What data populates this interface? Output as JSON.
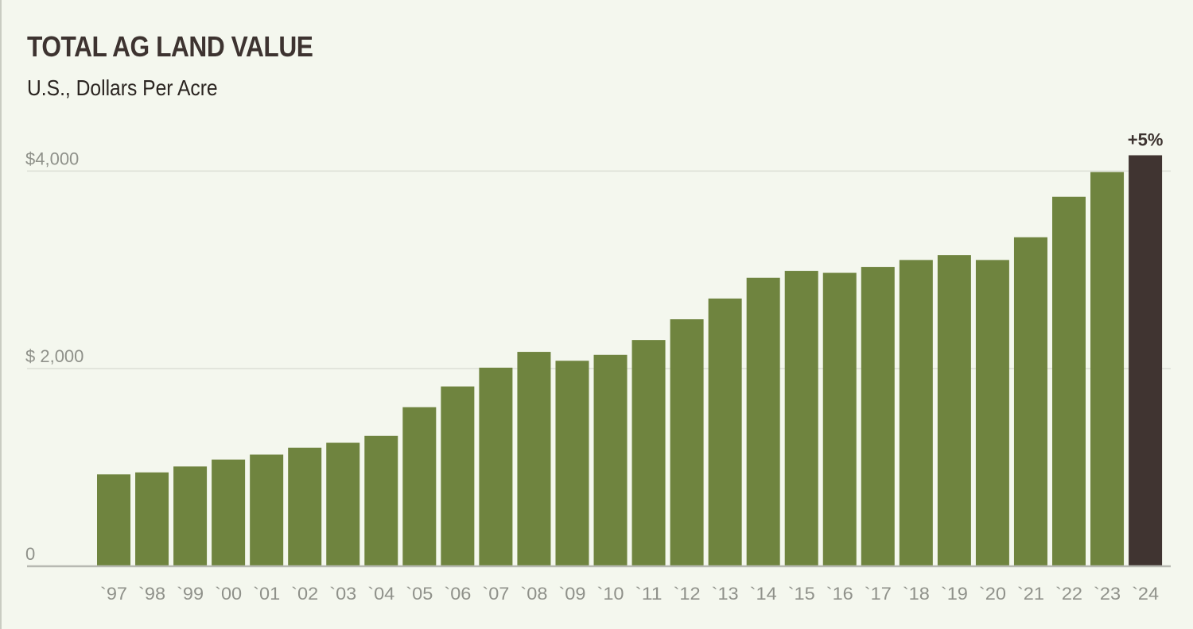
{
  "header": {
    "title": "TOTAL AG LAND VALUE",
    "subtitle": "U.S., Dollars Per Acre"
  },
  "colors": {
    "bar": "#6f843f",
    "highlight_bar": "#403431",
    "baseline": "#b7b9b2",
    "gridline": "#dcdfd5",
    "tick_text": "#8f918a",
    "background": "#f4f7ee"
  },
  "chart_data": {
    "type": "bar",
    "title": "TOTAL AG LAND VALUE",
    "subtitle": "U.S., Dollars Per Acre",
    "categories": [
      "`97",
      "`98",
      "`99",
      "`00",
      "`01",
      "`02",
      "`03",
      "`04",
      "`05",
      "`06",
      "`07",
      "`08",
      "`09",
      "`10",
      "`11",
      "`12",
      "`13",
      "`14",
      "`15",
      "`16",
      "`17",
      "`18",
      "`19",
      "`20",
      "`21",
      "`22",
      "`23",
      "`24"
    ],
    "values": [
      930,
      950,
      1010,
      1080,
      1130,
      1200,
      1250,
      1320,
      1610,
      1820,
      2010,
      2170,
      2080,
      2140,
      2290,
      2500,
      2710,
      2920,
      2990,
      2970,
      3030,
      3100,
      3150,
      3100,
      3330,
      3740,
      3990,
      4160
    ],
    "highlight_index": 27,
    "annotation": {
      "index": 27,
      "text": "+5%"
    },
    "y_ticks": [
      {
        "value": 0,
        "label": "0"
      },
      {
        "value": 2000,
        "label": "$ 2,000"
      },
      {
        "value": 4000,
        "label": "$4,000"
      }
    ],
    "ylim": [
      0,
      4160
    ],
    "xlabel": "",
    "ylabel": "",
    "grid": "horizontal at $2,000"
  }
}
